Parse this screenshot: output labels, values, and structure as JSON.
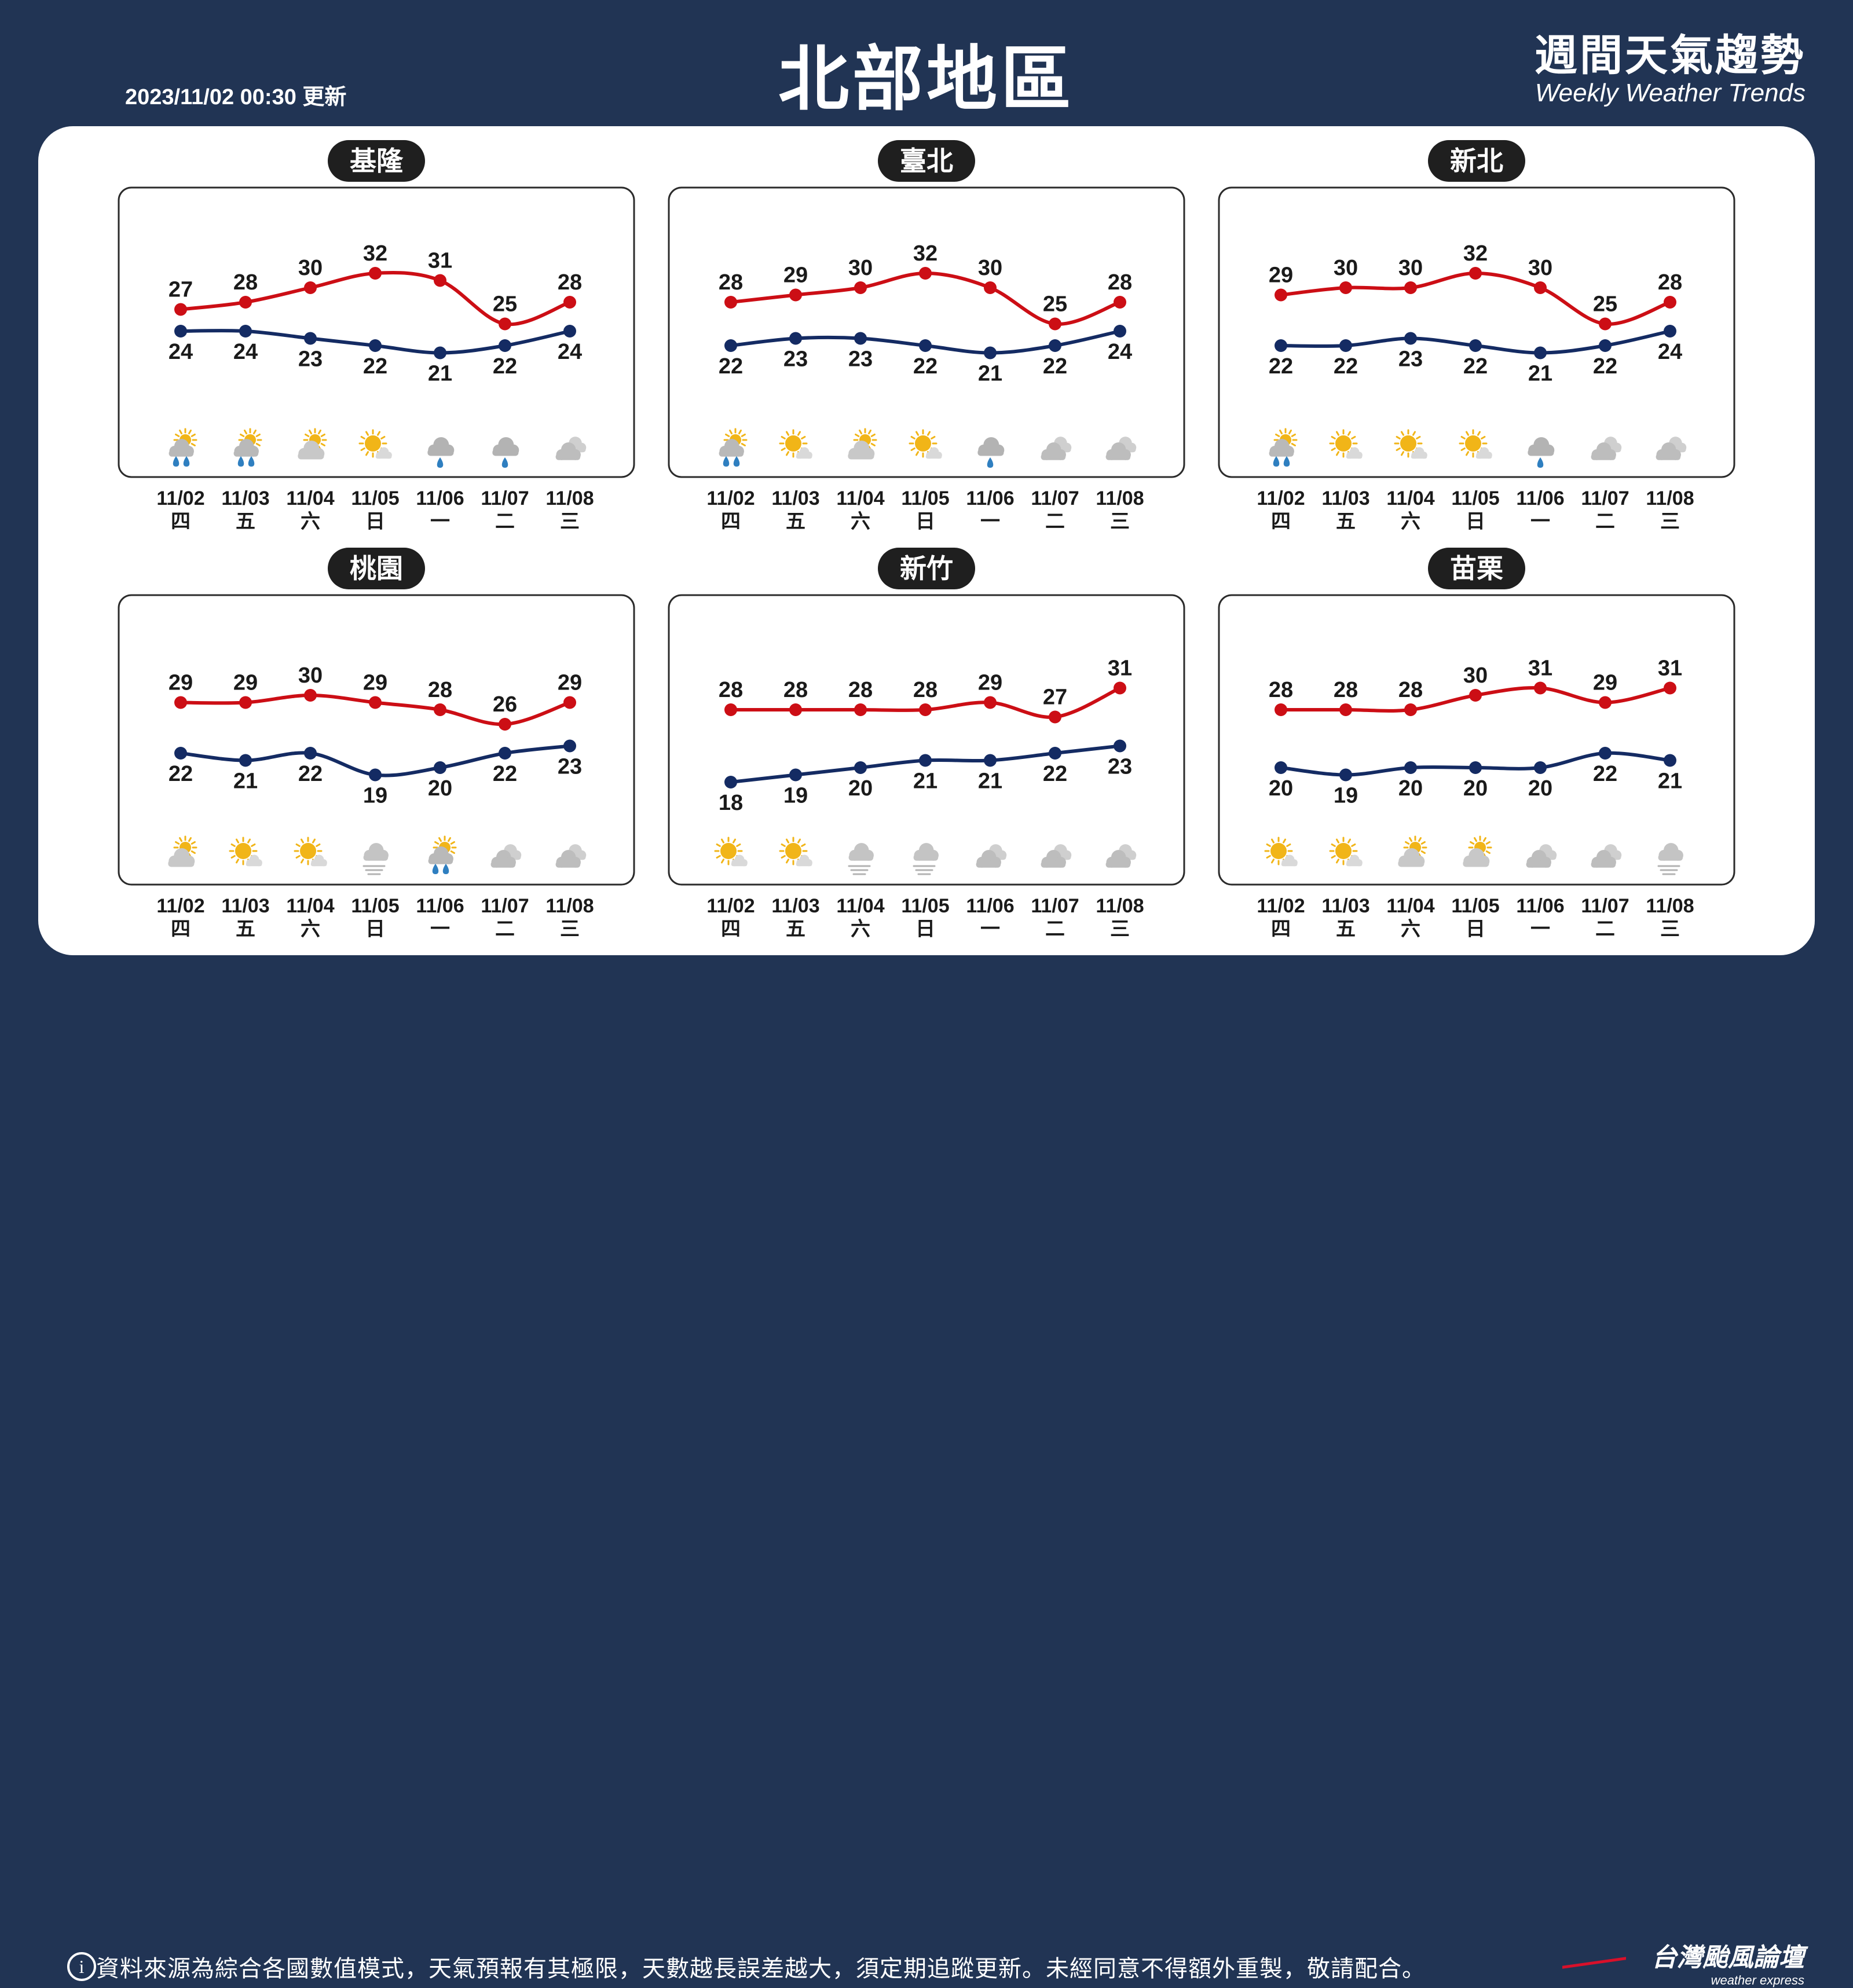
{
  "header": {
    "update": "2023/11/02 00:30 更新",
    "region": "北部地區",
    "brand_cn": "週間天氣趨勢",
    "brand_en": "Weekly Weather Trends"
  },
  "colors": {
    "high": "#cc0e15",
    "low": "#142b63",
    "background": "#213454",
    "pill": "#1f1f1f"
  },
  "chart_data": [
    {
      "type": "line",
      "title": "基隆",
      "x": [
        "11/02",
        "11/03",
        "11/04",
        "11/05",
        "11/06",
        "11/07",
        "11/08"
      ],
      "weekdays": [
        "四",
        "五",
        "六",
        "日",
        "一",
        "二",
        "三"
      ],
      "series": [
        {
          "values": [
            27,
            28,
            30,
            32,
            31,
            25,
            28
          ]
        },
        {
          "values": [
            24,
            24,
            23,
            22,
            21,
            22,
            24
          ]
        }
      ],
      "icons": [
        "partly-cloudy-rain-icon",
        "partly-cloudy-rain-icon",
        "partly-cloudy-icon",
        "mostly-sunny-icon",
        "rain-icon",
        "rain-icon",
        "cloudy-icon"
      ]
    },
    {
      "type": "line",
      "title": "臺北",
      "x": [
        "11/02",
        "11/03",
        "11/04",
        "11/05",
        "11/06",
        "11/07",
        "11/08"
      ],
      "weekdays": [
        "四",
        "五",
        "六",
        "日",
        "一",
        "二",
        "三"
      ],
      "series": [
        {
          "values": [
            28,
            29,
            30,
            32,
            30,
            25,
            28
          ]
        },
        {
          "values": [
            22,
            23,
            23,
            22,
            21,
            22,
            24
          ]
        }
      ],
      "icons": [
        "partly-cloudy-rain-icon",
        "mostly-sunny-icon",
        "partly-cloudy-icon",
        "mostly-sunny-icon",
        "rain-icon",
        "cloudy-icon",
        "cloudy-icon"
      ]
    },
    {
      "type": "line",
      "title": "新北",
      "x": [
        "11/02",
        "11/03",
        "11/04",
        "11/05",
        "11/06",
        "11/07",
        "11/08"
      ],
      "weekdays": [
        "四",
        "五",
        "六",
        "日",
        "一",
        "二",
        "三"
      ],
      "series": [
        {
          "values": [
            29,
            30,
            30,
            32,
            30,
            25,
            28
          ]
        },
        {
          "values": [
            22,
            22,
            23,
            22,
            21,
            22,
            24
          ]
        }
      ],
      "icons": [
        "partly-cloudy-rain-icon",
        "mostly-sunny-icon",
        "mostly-sunny-icon",
        "mostly-sunny-icon",
        "rain-icon",
        "cloudy-icon",
        "cloudy-icon"
      ]
    },
    {
      "type": "line",
      "title": "桃園",
      "x": [
        "11/02",
        "11/03",
        "11/04",
        "11/05",
        "11/06",
        "11/07",
        "11/08"
      ],
      "weekdays": [
        "四",
        "五",
        "六",
        "日",
        "一",
        "二",
        "三"
      ],
      "series": [
        {
          "values": [
            29,
            29,
            30,
            29,
            28,
            26,
            29
          ]
        },
        {
          "values": [
            22,
            21,
            22,
            19,
            20,
            22,
            23
          ]
        }
      ],
      "icons": [
        "partly-cloudy-icon",
        "mostly-sunny-icon",
        "mostly-sunny-icon",
        "fog-icon",
        "partly-cloudy-rain-icon",
        "cloudy-icon",
        "cloudy-icon"
      ]
    },
    {
      "type": "line",
      "title": "新竹",
      "x": [
        "11/02",
        "11/03",
        "11/04",
        "11/05",
        "11/06",
        "11/07",
        "11/08"
      ],
      "weekdays": [
        "四",
        "五",
        "六",
        "日",
        "一",
        "二",
        "三"
      ],
      "series": [
        {
          "values": [
            28,
            28,
            28,
            28,
            29,
            27,
            31
          ]
        },
        {
          "values": [
            18,
            19,
            20,
            21,
            21,
            22,
            23
          ]
        }
      ],
      "icons": [
        "mostly-sunny-icon",
        "mostly-sunny-icon",
        "fog-icon",
        "fog-icon",
        "cloudy-icon",
        "cloudy-icon",
        "cloudy-icon"
      ]
    },
    {
      "type": "line",
      "title": "苗栗",
      "x": [
        "11/02",
        "11/03",
        "11/04",
        "11/05",
        "11/06",
        "11/07",
        "11/08"
      ],
      "weekdays": [
        "四",
        "五",
        "六",
        "日",
        "一",
        "二",
        "三"
      ],
      "series": [
        {
          "values": [
            28,
            28,
            28,
            30,
            31,
            29,
            31
          ]
        },
        {
          "values": [
            20,
            19,
            20,
            20,
            20,
            22,
            21
          ]
        }
      ],
      "icons": [
        "mostly-sunny-icon",
        "mostly-sunny-icon",
        "partly-cloudy-icon",
        "partly-cloudy-icon",
        "cloudy-icon",
        "cloudy-icon",
        "fog-icon"
      ]
    }
  ],
  "footer": {
    "info_symbol": "i",
    "disclaimer": "資料來源為綜合各國數值模式，天氣預報有其極限，天數越長誤差越大，須定期追蹤更新。未經同意不得額外重製，敬請配合。",
    "brand_cn": "台灣颱風論壇",
    "brand_en": "weather express"
  }
}
